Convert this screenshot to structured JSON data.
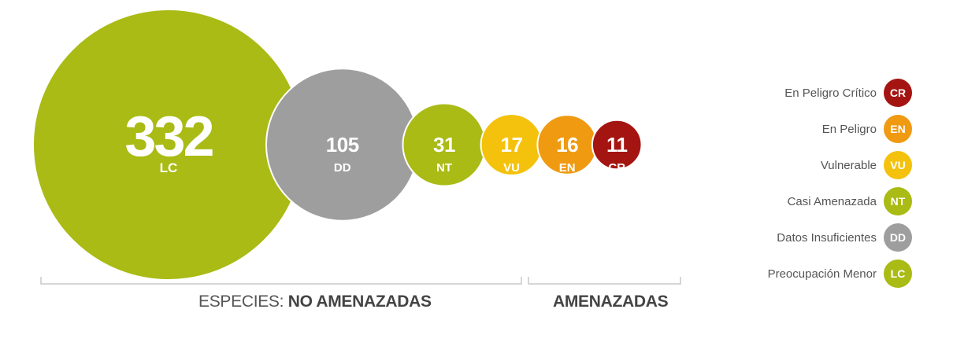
{
  "chart_data": {
    "type": "bubble",
    "series": [
      {
        "code": "LC",
        "value": 332,
        "color": "#a9bb14"
      },
      {
        "code": "DD",
        "value": 105,
        "color": "#9e9e9e"
      },
      {
        "code": "NT",
        "value": 31,
        "color": "#a9bb14"
      },
      {
        "code": "VU",
        "value": 17,
        "color": "#f4c20d"
      },
      {
        "code": "EN",
        "value": 16,
        "color": "#ef9a10"
      },
      {
        "code": "CR",
        "value": 11,
        "color": "#a41512"
      }
    ],
    "groups": [
      {
        "prefix": "ESPECIES: ",
        "name": "NO AMENAZADAS",
        "codes": [
          "LC",
          "DD",
          "NT"
        ]
      },
      {
        "prefix": "",
        "name": "AMENAZADAS",
        "codes": [
          "VU",
          "EN",
          "CR"
        ]
      }
    ],
    "legend": {
      "position": "right",
      "items": [
        {
          "label": "En Peligro Crítico",
          "code": "CR",
          "color": "#a41512"
        },
        {
          "label": "En Peligro",
          "code": "EN",
          "color": "#ef9a10"
        },
        {
          "label": "Vulnerable",
          "code": "VU",
          "color": "#f4c20d"
        },
        {
          "label": "Casi Amenazada",
          "code": "NT",
          "color": "#a9bb14"
        },
        {
          "label": "Datos Insuficientes",
          "code": "DD",
          "color": "#9e9e9e"
        },
        {
          "label": "Preocupación Menor",
          "code": "LC",
          "color": "#a9bb14"
        }
      ]
    }
  }
}
